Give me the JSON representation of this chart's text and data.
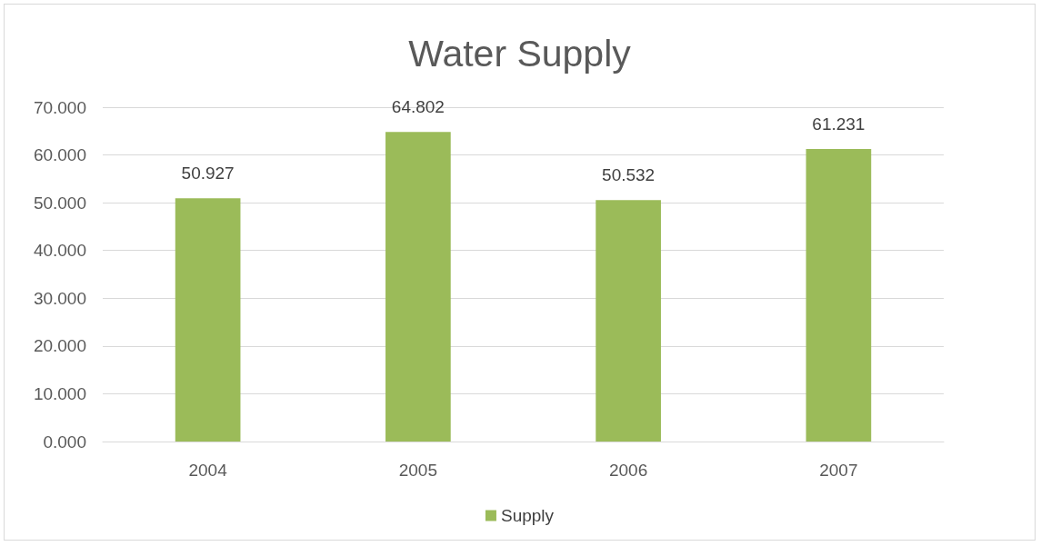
{
  "chart_data": {
    "type": "bar",
    "title": "Water Supply",
    "categories": [
      "2004",
      "2005",
      "2006",
      "2007"
    ],
    "series": [
      {
        "name": "Supply",
        "color": "#9bbb59",
        "values": [
          50.927,
          64.802,
          50.532,
          61.231
        ]
      }
    ],
    "ylim": [
      0,
      70
    ],
    "yticks": [
      {
        "value": 0,
        "label": "0.000"
      },
      {
        "value": 10,
        "label": "10.000"
      },
      {
        "value": 20,
        "label": "20.000"
      },
      {
        "value": 30,
        "label": "30.000"
      },
      {
        "value": 40,
        "label": "40.000"
      },
      {
        "value": 50,
        "label": "50.000"
      },
      {
        "value": 60,
        "label": "60.000"
      },
      {
        "value": 70,
        "label": "70.000"
      }
    ],
    "grid": "y",
    "legend": "bottom",
    "data_labels": true
  }
}
